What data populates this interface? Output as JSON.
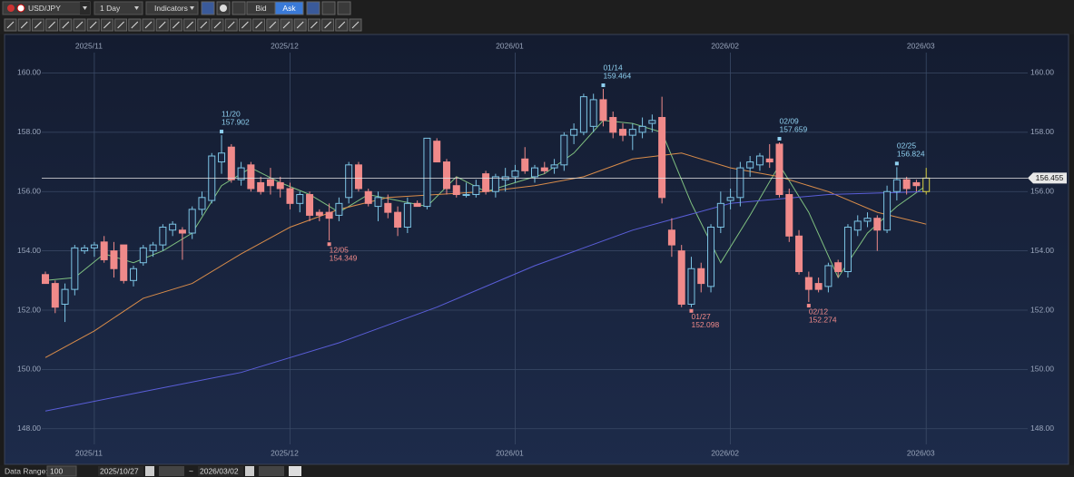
{
  "toolbar": {
    "symbol": "USD/JPY",
    "period": "1 Day",
    "indicators": "Indicators",
    "bid": "Bid",
    "ask": "Ask"
  },
  "chart_data": {
    "type": "candlestick",
    "categories": [
      null,
      null,
      null,
      null,
      null,
      "2025/11",
      null,
      null,
      null,
      null,
      null,
      null,
      null,
      null,
      null,
      null,
      null,
      null,
      null,
      null,
      null,
      null,
      null,
      null,
      null,
      "2025/12",
      null,
      null,
      null,
      null,
      null,
      null,
      null,
      null,
      null,
      null,
      null,
      null,
      null,
      null,
      null,
      null,
      null,
      null,
      null,
      null,
      null,
      null,
      "2026/01",
      null,
      null,
      null,
      null,
      null,
      null,
      null,
      null,
      null,
      null,
      null,
      null,
      null,
      null,
      null,
      null,
      null,
      null,
      null,
      null,
      null,
      "2026/02",
      null,
      null,
      null,
      null,
      null,
      null,
      null,
      null,
      null,
      null,
      null,
      null,
      null,
      null,
      null,
      null,
      null,
      null,
      null,
      "2026/03"
    ],
    "open": [
      153.2,
      152.9,
      152.2,
      152.7,
      154.0,
      154.1,
      154.3,
      154.0,
      154.2,
      153.0,
      153.6,
      154.0,
      154.2,
      154.7,
      154.7,
      154.6,
      155.4,
      155.7,
      157.0,
      157.5,
      156.4,
      156.9,
      156.3,
      156.4,
      156.3,
      156.1,
      155.6,
      155.9,
      155.3,
      155.3,
      155.2,
      155.8,
      156.9,
      156.0,
      155.5,
      155.6,
      155.3,
      154.8,
      155.6,
      155.5,
      157.7,
      157.0,
      156.2,
      155.9,
      155.9,
      156.6,
      156.0,
      156.4,
      156.5,
      157.1,
      156.5,
      156.8,
      156.8,
      156.9,
      157.9,
      158.0,
      158.2,
      159.1,
      158.5,
      158.1,
      157.9,
      158.0,
      158.3,
      158.5,
      154.7,
      154.0,
      152.2,
      153.4,
      152.8,
      154.8,
      155.7,
      155.8,
      156.8,
      156.9,
      157.1,
      157.6,
      155.9,
      154.5,
      153.1,
      152.9,
      152.8,
      153.6,
      153.3,
      154.7,
      155.0,
      155.1,
      154.7,
      156.0,
      156.4,
      156.3,
      156.0
    ],
    "high": [
      153.3,
      153.0,
      152.9,
      154.2,
      154.2,
      154.3,
      154.5,
      154.3,
      154.2,
      153.5,
      154.2,
      154.3,
      154.9,
      155.0,
      154.8,
      155.5,
      156.0,
      157.3,
      157.902,
      157.6,
      157.0,
      157.0,
      156.5,
      156.8,
      156.5,
      156.3,
      156.0,
      156.0,
      155.4,
      155.6,
      155.8,
      157.0,
      157.0,
      156.1,
      156.0,
      155.9,
      155.5,
      155.8,
      155.7,
      157.8,
      157.8,
      157.1,
      156.5,
      156.3,
      156.4,
      156.7,
      156.6,
      156.8,
      156.9,
      157.5,
      156.9,
      157.0,
      157.1,
      158.0,
      158.3,
      159.3,
      159.3,
      159.464,
      158.7,
      158.3,
      158.3,
      158.5,
      158.6,
      159.2,
      155.1,
      154.2,
      153.8,
      153.6,
      154.9,
      156.0,
      156.1,
      157.0,
      157.2,
      157.3,
      157.6,
      157.659,
      156.1,
      154.7,
      153.3,
      153.1,
      153.6,
      153.7,
      154.9,
      155.2,
      155.3,
      155.2,
      156.2,
      156.824,
      156.5,
      156.4,
      156.8
    ],
    "low": [
      152.9,
      151.9,
      151.6,
      152.5,
      153.9,
      153.8,
      153.6,
      153.1,
      152.9,
      152.8,
      153.5,
      153.8,
      154.0,
      154.5,
      153.7,
      154.4,
      155.2,
      155.6,
      156.6,
      156.3,
      156.2,
      156.0,
      155.9,
      155.9,
      155.8,
      155.4,
      155.3,
      155.0,
      155.0,
      154.349,
      155.0,
      155.6,
      156.0,
      155.5,
      155.0,
      155.1,
      154.5,
      154.6,
      155.5,
      155.4,
      157.0,
      155.9,
      155.8,
      155.8,
      155.8,
      155.9,
      155.8,
      156.0,
      156.3,
      156.6,
      156.3,
      156.6,
      156.6,
      156.7,
      157.6,
      157.9,
      158.0,
      158.2,
      157.8,
      157.7,
      157.4,
      157.8,
      158.0,
      155.6,
      153.8,
      152.1,
      152.098,
      152.6,
      152.6,
      154.6,
      155.4,
      155.5,
      156.5,
      156.7,
      156.8,
      155.8,
      154.3,
      153.2,
      152.274,
      152.6,
      152.6,
      153.1,
      153.1,
      154.5,
      154.8,
      154.0,
      154.6,
      155.7,
      155.9,
      156.0,
      155.9
    ],
    "close": [
      152.9,
      152.1,
      152.7,
      154.1,
      154.1,
      154.2,
      153.7,
      153.4,
      153.0,
      153.4,
      154.1,
      154.2,
      154.8,
      154.9,
      154.6,
      155.4,
      155.8,
      157.2,
      157.3,
      156.4,
      156.8,
      156.1,
      156.0,
      156.2,
      156.1,
      155.6,
      155.9,
      155.2,
      155.2,
      155.1,
      155.6,
      156.9,
      156.1,
      155.6,
      155.8,
      155.3,
      154.8,
      155.6,
      155.5,
      157.8,
      157.0,
      156.1,
      155.9,
      155.9,
      156.2,
      156.0,
      156.5,
      156.5,
      156.7,
      156.7,
      156.8,
      156.7,
      156.9,
      157.9,
      158.1,
      159.2,
      159.1,
      158.4,
      158.0,
      157.9,
      158.1,
      158.2,
      158.4,
      155.8,
      154.2,
      152.2,
      153.4,
      152.9,
      154.8,
      155.6,
      155.8,
      156.8,
      157.0,
      157.2,
      157.0,
      155.9,
      154.5,
      153.3,
      152.7,
      152.7,
      153.5,
      153.3,
      154.8,
      155.0,
      155.1,
      154.7,
      156.0,
      156.4,
      156.1,
      156.2,
      156.455
    ],
    "up_color": "#7cc4e4",
    "down_color": "#f08a8a",
    "last_color": "#d8d040",
    "lines": [
      {
        "color": "#7fc080",
        "x": [
          0,
          3,
          6,
          9,
          12,
          15,
          18,
          21,
          24,
          27,
          30,
          33,
          36,
          39,
          42,
          45,
          48,
          51,
          54,
          57,
          60,
          63,
          66,
          69,
          72,
          75,
          78,
          81,
          84,
          87,
          90
        ],
        "values": [
          153.0,
          153.1,
          153.9,
          153.6,
          154.0,
          154.6,
          156.2,
          156.8,
          156.3,
          155.9,
          155.3,
          155.9,
          155.7,
          155.5,
          156.5,
          156.0,
          156.3,
          156.6,
          157.3,
          158.4,
          158.3,
          158.0,
          155.6,
          153.6,
          155.2,
          156.9,
          155.3,
          153.1,
          154.6,
          155.5,
          156.2
        ]
      },
      {
        "color": "#d98c4a",
        "x": [
          0,
          5,
          10,
          15,
          20,
          25,
          30,
          35,
          40,
          45,
          50,
          55,
          60,
          65,
          70,
          75,
          80,
          85,
          90
        ],
        "values": [
          150.4,
          151.3,
          152.4,
          152.9,
          153.9,
          154.8,
          155.4,
          155.8,
          155.9,
          156.0,
          156.2,
          156.5,
          157.1,
          157.3,
          156.8,
          156.5,
          156.0,
          155.3,
          154.9
        ]
      },
      {
        "color": "#5a5ed8",
        "x": [
          0,
          10,
          20,
          30,
          40,
          50,
          60,
          70,
          80,
          90
        ],
        "values": [
          148.6,
          149.25,
          149.9,
          150.9,
          152.1,
          153.5,
          154.7,
          155.6,
          155.9,
          156.0
        ]
      }
    ],
    "annotations": [
      {
        "date": "11/20",
        "price": 157.902
      },
      {
        "date": "12/05",
        "price": 154.349
      },
      {
        "date": "01/14",
        "price": 159.464
      },
      {
        "date": "01/27",
        "price": 152.098
      },
      {
        "date": "02/09",
        "price": 157.659
      },
      {
        "date": "02/12",
        "price": 152.274
      },
      {
        "date": "02/25",
        "price": 156.824
      }
    ],
    "current_price": 156.455,
    "ylim": [
      146.8,
      161.3
    ],
    "yticks": [
      {
        "value": 148,
        "label": "148.00"
      },
      {
        "value": 150,
        "label": "150.00"
      },
      {
        "value": 152,
        "label": "152.00"
      },
      {
        "value": 154,
        "label": "154.00"
      },
      {
        "value": 156,
        "label": "156.00"
      },
      {
        "value": 158,
        "label": "158.00"
      },
      {
        "value": 160,
        "label": "160.00"
      }
    ],
    "grid": true
  },
  "footer": {
    "label": "Data Range:",
    "count": "100",
    "from": "2025/10/27",
    "separator": "~",
    "to": "2026/03/02"
  }
}
